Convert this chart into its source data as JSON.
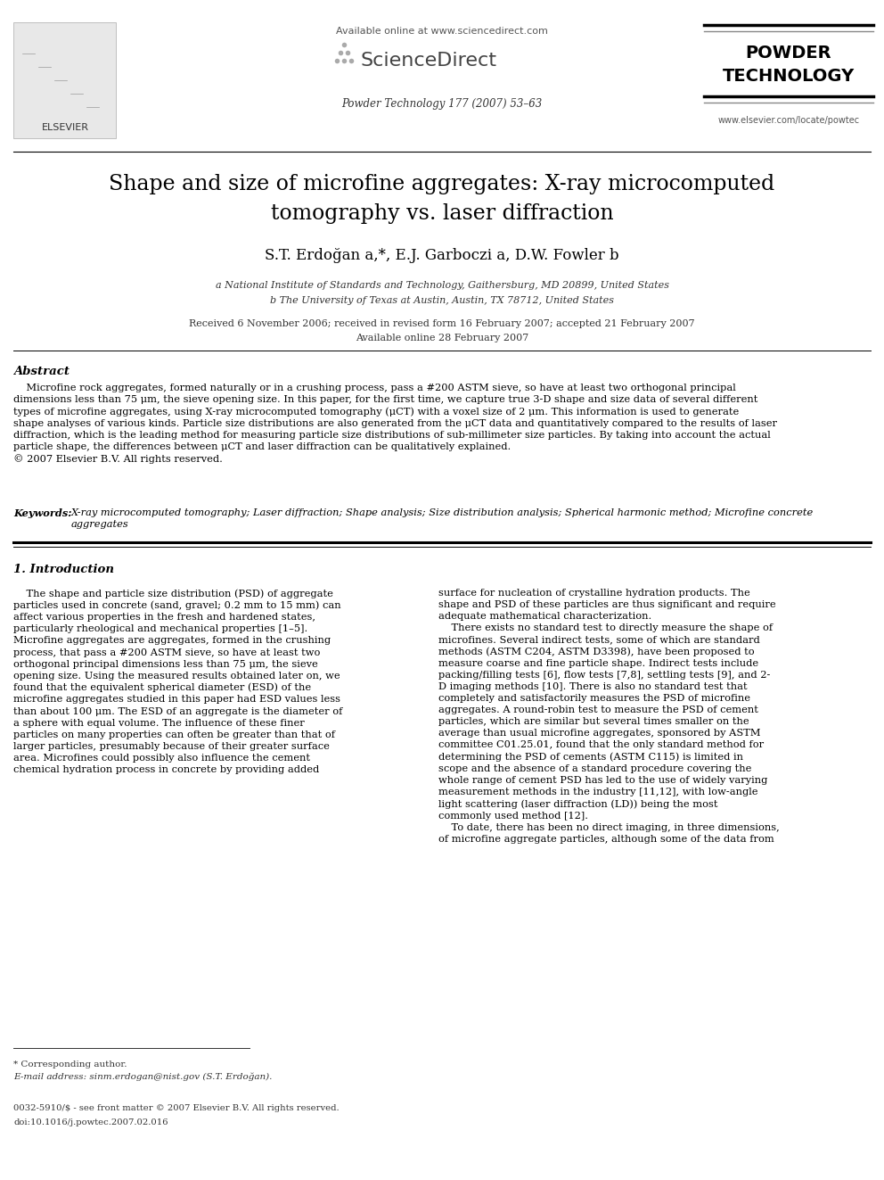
{
  "bg_color": "#ffffff",
  "header_available_online": "Available online at www.sciencedirect.com",
  "science_direct": "ScienceDirect",
  "journal_name_line1": "Powder Technology 177 (2007) 53–63",
  "journal_url": "www.elsevier.com/locate/powtec",
  "powder_tech_line1": "POWDER",
  "powder_tech_line2": "TECHNOLOGY",
  "elsevier_text": "ELSEVIER",
  "title_line1": "Shape and size of microfine aggregates: X-ray microcomputed",
  "title_line2": "tomography vs. laser diffraction",
  "authors_full": "S.T. Erdoğan a,*, E.J. Garboczi a, D.W. Fowler b",
  "affil_a": "a National Institute of Standards and Technology, Gaithersburg, MD 20899, United States",
  "affil_b": "b The University of Texas at Austin, Austin, TX 78712, United States",
  "received": "Received 6 November 2006; received in revised form 16 February 2007; accepted 21 February 2007",
  "available_online_date": "Available online 28 February 2007",
  "abstract_title": "Abstract",
  "abstract_body": "    Microfine rock aggregates, formed naturally or in a crushing process, pass a #200 ASTM sieve, so have at least two orthogonal principal\ndimensions less than 75 μm, the sieve opening size. In this paper, for the first time, we capture true 3-D shape and size data of several different\ntypes of microfine aggregates, using X-ray microcomputed tomography (μCT) with a voxel size of 2 μm. This information is used to generate\nshape analyses of various kinds. Particle size distributions are also generated from the μCT data and quantitatively compared to the results of laser\ndiffraction, which is the leading method for measuring particle size distributions of sub-millimeter size particles. By taking into account the actual\nparticle shape, the differences between μCT and laser diffraction can be qualitatively explained.\n© 2007 Elsevier B.V. All rights reserved.",
  "keywords_label": "Keywords:",
  "keywords_body": "X-ray microcomputed tomography; Laser diffraction; Shape analysis; Size distribution analysis; Spherical harmonic method; Microfine concrete\naggregates",
  "section1_title": "1. Introduction",
  "col1_text": "    The shape and particle size distribution (PSD) of aggregate\nparticles used in concrete (sand, gravel; 0.2 mm to 15 mm) can\naffect various properties in the fresh and hardened states,\nparticularly rheological and mechanical properties [1–5].\nMicrofine aggregates are aggregates, formed in the crushing\nprocess, that pass a #200 ASTM sieve, so have at least two\northogonal principal dimensions less than 75 μm, the sieve\nopening size. Using the measured results obtained later on, we\nfound that the equivalent spherical diameter (ESD) of the\nmicrofine aggregates studied in this paper had ESD values less\nthan about 100 μm. The ESD of an aggregate is the diameter of\na sphere with equal volume. The influence of these finer\nparticles on many properties can often be greater than that of\nlarger particles, presumably because of their greater surface\narea. Microfines could possibly also influence the cement\nchemical hydration process in concrete by providing added",
  "col2_text": "surface for nucleation of crystalline hydration products. The\nshape and PSD of these particles are thus significant and require\nadequate mathematical characterization.\n    There exists no standard test to directly measure the shape of\nmicrofines. Several indirect tests, some of which are standard\nmethods (ASTM C204, ASTM D3398), have been proposed to\nmeasure coarse and fine particle shape. Indirect tests include\npacking/filling tests [6], flow tests [7,8], settling tests [9], and 2-\nD imaging methods [10]. There is also no standard test that\ncompletely and satisfactorily measures the PSD of microfine\naggregates. A round-robin test to measure the PSD of cement\nparticles, which are similar but several times smaller on the\naverage than usual microfine aggregates, sponsored by ASTM\ncommittee C01.25.01, found that the only standard method for\ndetermining the PSD of cements (ASTM C115) is limited in\nscope and the absence of a standard procedure covering the\nwhole range of cement PSD has led to the use of widely varying\nmeasurement methods in the industry [11,12], with low-angle\nlight scattering (laser diffraction (LD)) being the most\ncommonly used method [12].\n    To date, there has been no direct imaging, in three dimensions,\nof microfine aggregate particles, although some of the data from",
  "footer_star": "* Corresponding author.",
  "footer_email": "E-mail address: sinm.erdogan@nist.gov (S.T. Erdoğan).",
  "footer_issn": "0032-5910/$ - see front matter © 2007 Elsevier B.V. All rights reserved.",
  "footer_doi": "doi:10.1016/j.powtec.2007.02.016"
}
